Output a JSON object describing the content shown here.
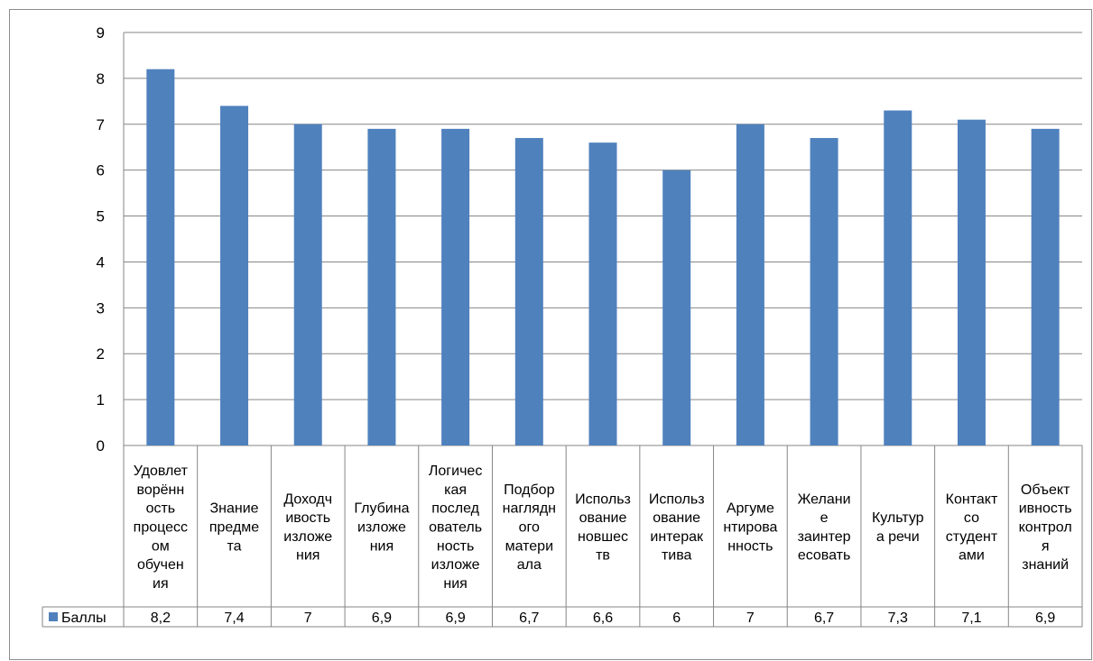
{
  "chart_data": {
    "type": "bar",
    "title": "",
    "xlabel": "",
    "ylabel": "",
    "ylim": [
      0,
      9
    ],
    "yticks": [
      "0",
      "1",
      "2",
      "3",
      "4",
      "5",
      "6",
      "7",
      "8",
      "9"
    ],
    "grid": true,
    "legend_position": "data-table",
    "bar_color": "#4F81BD",
    "categories": [
      [
        "Удовлет",
        "ворённ",
        "ость",
        "процесс",
        "ом",
        "обучен",
        "ия"
      ],
      [
        "Знание",
        "предме",
        "та"
      ],
      [
        "Доходч",
        "ивость",
        "изложе",
        "ния"
      ],
      [
        "Глубина",
        "изложе",
        "ния"
      ],
      [
        "Логичес",
        "кая",
        "послед",
        "ователь",
        "ность",
        "изложе",
        "ния"
      ],
      [
        "Подбор",
        "наглядн",
        "ого",
        "матери",
        "ала"
      ],
      [
        "Использ",
        "ование",
        "новшес",
        "тв"
      ],
      [
        "Использ",
        "ование",
        "интерак",
        "тива"
      ],
      [
        "Аргуме",
        "нтирова",
        "нность"
      ],
      [
        "Желани",
        "е",
        "заинтер",
        "есовать"
      ],
      [
        "Культур",
        "а речи"
      ],
      [
        "Контакт",
        "со",
        "студент",
        "ами"
      ],
      [
        "Объект",
        "ивность",
        "контрол",
        "я",
        "знаний"
      ]
    ],
    "series": [
      {
        "name": "Баллы",
        "values": [
          8.2,
          7.4,
          7,
          6.9,
          6.9,
          6.7,
          6.6,
          6,
          7,
          6.7,
          7.3,
          7.1,
          6.9
        ],
        "labels": [
          "8,2",
          "7,4",
          "7",
          "6,9",
          "6,9",
          "6,7",
          "6,6",
          "6",
          "7",
          "6,7",
          "7,3",
          "7,1",
          "6,9"
        ]
      }
    ]
  }
}
